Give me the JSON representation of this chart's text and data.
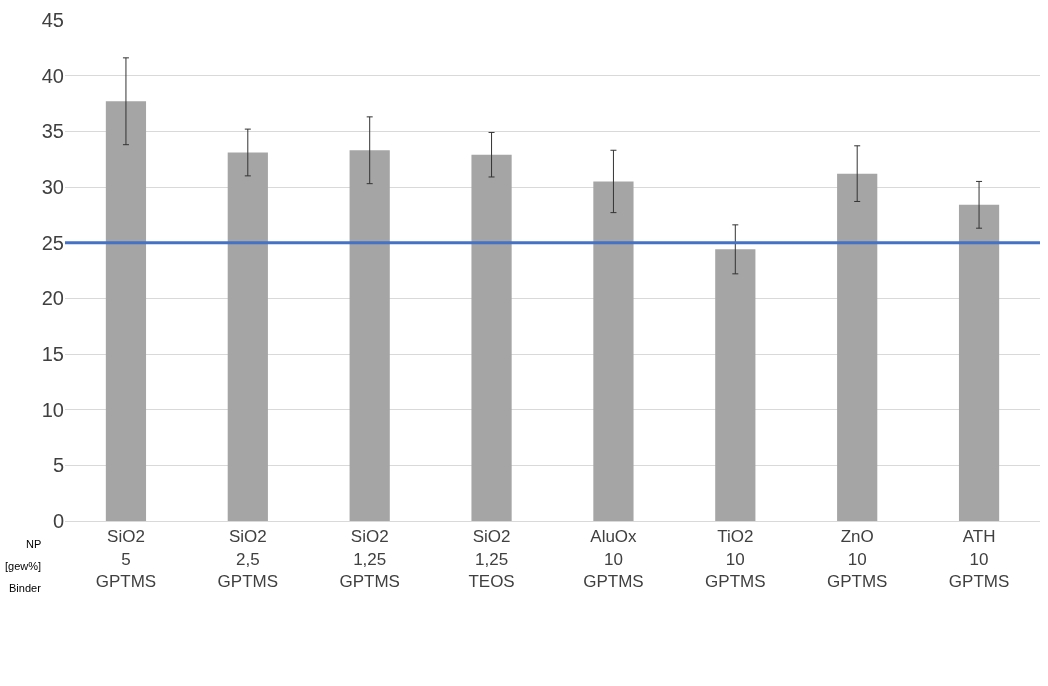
{
  "chart_data": {
    "type": "bar",
    "categories": [
      "SiO2\n5\nGPTMS",
      "SiO2\n2,5\nGPTMS",
      "SiO2\n1,25\nGPTMS",
      "SiO2\n1,25\nTEOS",
      "AluOx\n10\nGPTMS",
      "TiO2\n10\nGPTMS",
      "ZnO\n10\nGPTMS",
      "ATH\n10\nGPTMS"
    ],
    "values": [
      37.7,
      33.1,
      33.3,
      32.9,
      30.5,
      24.4,
      31.2,
      28.4
    ],
    "errors": [
      3.9,
      2.1,
      3.0,
      2.0,
      2.8,
      2.2,
      2.5,
      2.1
    ],
    "color": "#a5a5a5",
    "ylim": [
      0,
      45
    ],
    "yticks": [
      0,
      5,
      10,
      15,
      20,
      25,
      30,
      35,
      40,
      45
    ],
    "grid": "y",
    "ref_lines": [
      {
        "axis": "y",
        "value": 25,
        "color": "#4472c4"
      }
    ],
    "annotations": [
      "NP",
      "[gew%]",
      "Binder"
    ]
  }
}
